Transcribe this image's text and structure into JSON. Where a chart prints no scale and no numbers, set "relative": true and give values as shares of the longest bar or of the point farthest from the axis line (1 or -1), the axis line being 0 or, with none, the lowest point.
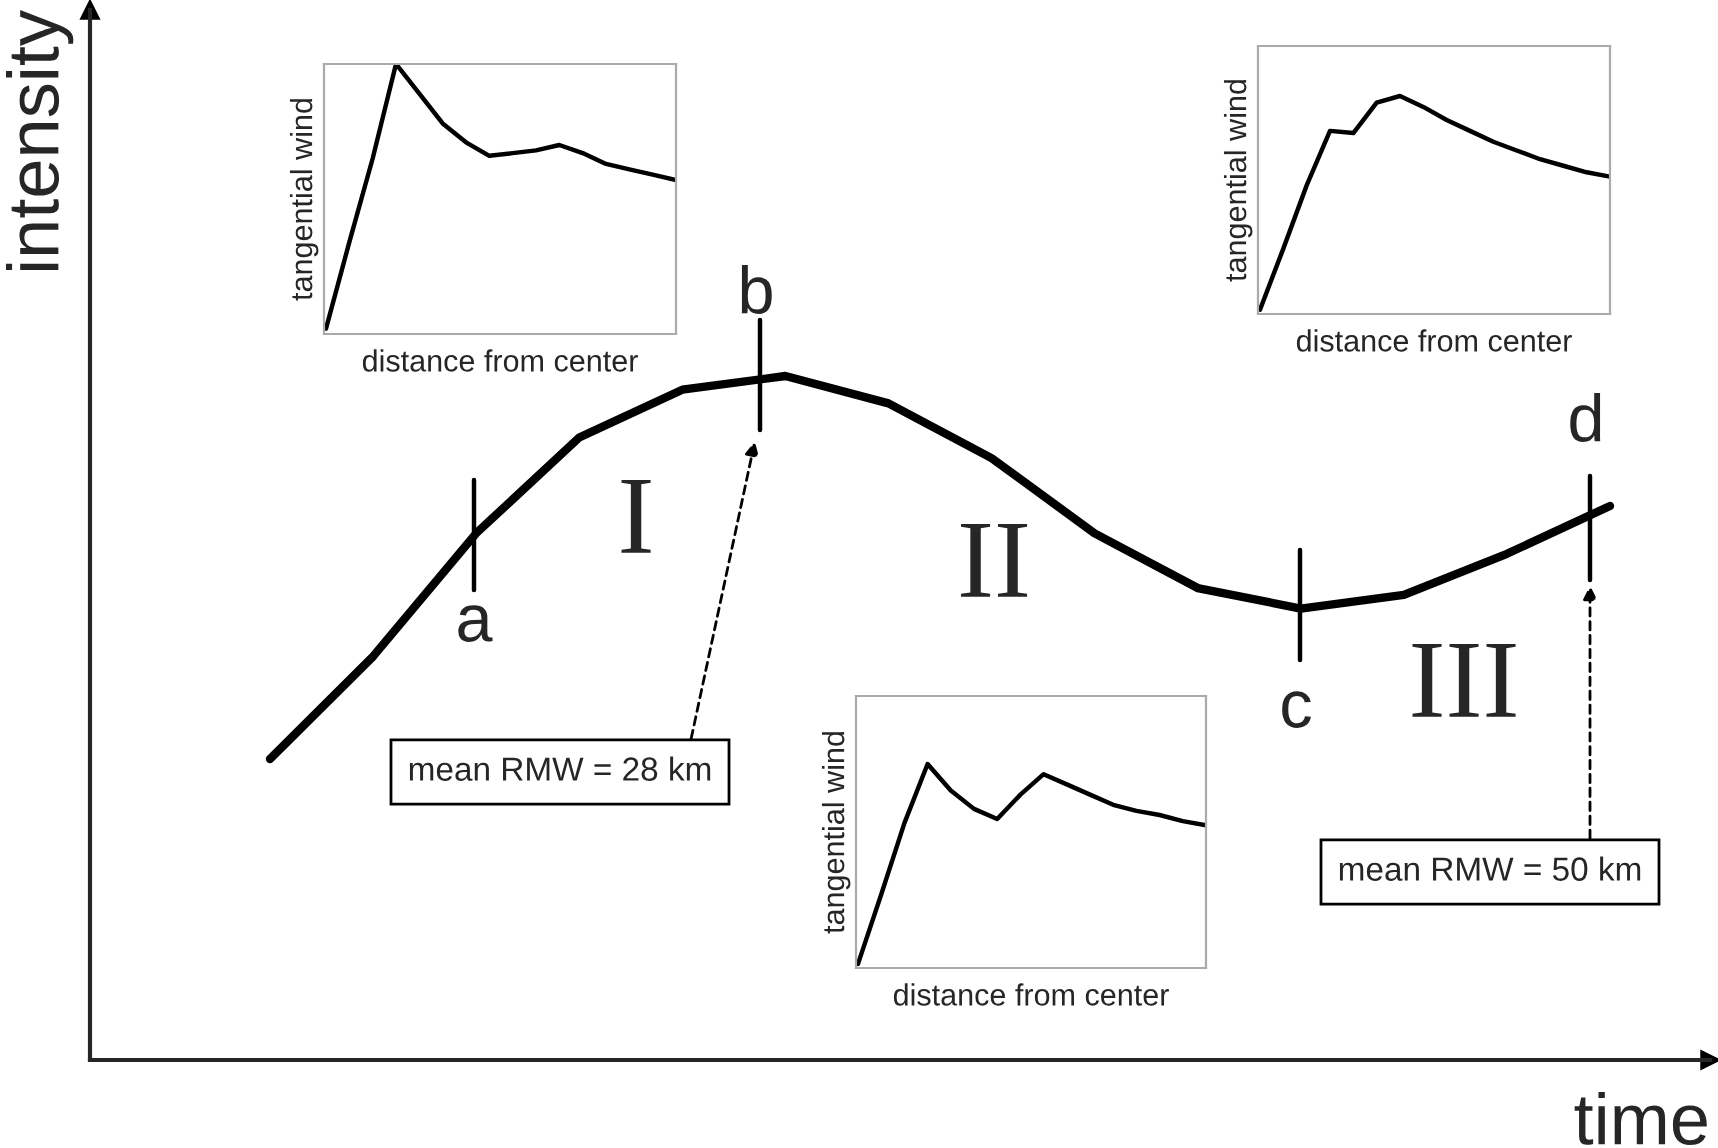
{
  "chart_data": [
    {
      "type": "line",
      "relative": true,
      "xlabel": "time",
      "ylabel": "intensity",
      "color": "#000000",
      "categories": [
        null,
        null,
        null,
        null,
        null,
        null,
        null,
        null,
        null,
        null,
        null,
        null,
        null,
        null
      ],
      "values": [
        0.44,
        0.59,
        0.77,
        0.91,
        0.98,
        1,
        0.96,
        0.88,
        0.77,
        0.69,
        0.66,
        0.68,
        0.74,
        0.81
      ],
      "annotations": [
        "a",
        "b",
        "c",
        "d",
        "I",
        "II",
        "III",
        "mean RMW = 28 km",
        "mean RMW = 50 km"
      ]
    },
    {
      "type": "line",
      "relative": true,
      "xlabel": "distance from center",
      "ylabel": "tangential wind",
      "color": "#000000",
      "categories": [
        null,
        null,
        null,
        null,
        null,
        null,
        null,
        null,
        null,
        null,
        null,
        null,
        null,
        null,
        null,
        null
      ],
      "values": [
        0.02,
        0.34,
        0.65,
        1,
        0.89,
        0.78,
        0.71,
        0.66,
        0.67,
        0.68,
        0.7,
        0.67,
        0.63,
        0.61,
        0.59,
        0.57
      ]
    },
    {
      "type": "line",
      "relative": true,
      "xlabel": "distance from center",
      "ylabel": "tangential wind",
      "color": "#000000",
      "categories": [
        null,
        null,
        null,
        null,
        null,
        null,
        null,
        null,
        null,
        null,
        null,
        null,
        null,
        null,
        null,
        null
      ],
      "values": [
        0.02,
        0.3,
        0.59,
        0.84,
        0.83,
        0.97,
        1,
        0.95,
        0.89,
        0.84,
        0.79,
        0.75,
        0.71,
        0.68,
        0.65,
        0.63
      ]
    },
    {
      "type": "line",
      "relative": true,
      "xlabel": "distance from center",
      "ylabel": "tangential wind",
      "color": "#000000",
      "categories": [
        null,
        null,
        null,
        null,
        null,
        null,
        null,
        null,
        null,
        null,
        null,
        null,
        null,
        null,
        null,
        null
      ],
      "values": [
        0.02,
        0.36,
        0.71,
        1,
        0.87,
        0.78,
        0.73,
        0.85,
        0.95,
        0.9,
        0.85,
        0.8,
        0.77,
        0.75,
        0.72,
        0.7
      ]
    }
  ]
}
